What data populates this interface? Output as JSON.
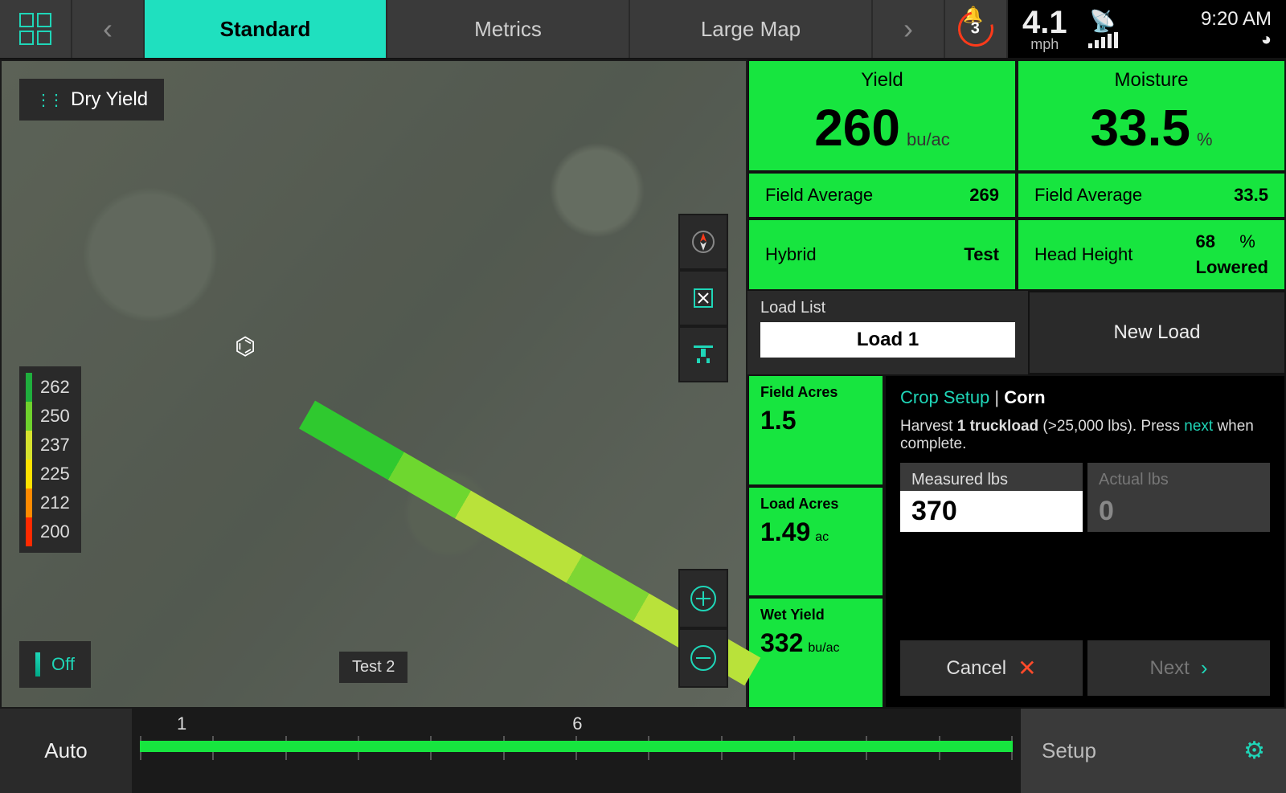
{
  "colors": {
    "accent": "#1fd6b8",
    "green": "#17e53f",
    "alarm": "#ff3a1a",
    "panel": "#2a2a2a",
    "panel2": "#3a3a3a"
  },
  "topbar": {
    "tabs": [
      "Standard",
      "Metrics",
      "Large Map"
    ],
    "active_tab": 0,
    "alert_count": "3",
    "speed": "4.1",
    "speed_unit": "mph",
    "time": "9:20 AM",
    "signal_bars": 5
  },
  "map": {
    "layer_label": "Dry Yield",
    "off_label": "Off",
    "field_label": "Test 2",
    "legend": [
      {
        "value": "262",
        "color": "#1fae3d"
      },
      {
        "value": "250",
        "color": "#6fd12d"
      },
      {
        "value": "237",
        "color": "#d6e22e"
      },
      {
        "value": "225",
        "color": "#ffe100"
      },
      {
        "value": "212",
        "color": "#ff8a00"
      },
      {
        "value": "200",
        "color": "#ff2a00"
      }
    ]
  },
  "metrics": {
    "yield": {
      "title": "Yield",
      "value": "260",
      "unit": "bu/ac",
      "avg_label": "Field Average",
      "avg": "269"
    },
    "moisture": {
      "title": "Moisture",
      "value": "33.5",
      "unit": "%",
      "avg_label": "Field Average",
      "avg": "33.5"
    },
    "hybrid": {
      "label": "Hybrid",
      "value": "Test"
    },
    "head": {
      "label": "Head Height",
      "pct": "68",
      "pct_unit": "%",
      "state": "Lowered"
    }
  },
  "load": {
    "list_label": "Load List",
    "selected": "Load 1",
    "new_label": "New Load"
  },
  "mini": {
    "field_acres": {
      "t": "Field Acres",
      "v": "1.5",
      "u": ""
    },
    "load_acres": {
      "t": "Load Acres",
      "v": "1.49",
      "u": "ac"
    },
    "wet_yield": {
      "t": "Wet Yield",
      "v": "332",
      "u": "bu/ac"
    }
  },
  "setup": {
    "head_a": "Crop Setup",
    "head_sep": " | ",
    "head_b": "Corn",
    "line1a": "Harvest ",
    "line1b": "1 truckload",
    "line1c": " (>25,000 lbs). Press ",
    "line1d": "next",
    "line1e": " when complete.",
    "measured_label": "Measured lbs",
    "measured_value": "370",
    "actual_label": "Actual lbs",
    "actual_value": "0",
    "cancel": "Cancel",
    "next": "Next"
  },
  "bottom": {
    "auto": "Auto",
    "marks": [
      "1",
      "6"
    ],
    "sections": 12,
    "setup": "Setup"
  }
}
